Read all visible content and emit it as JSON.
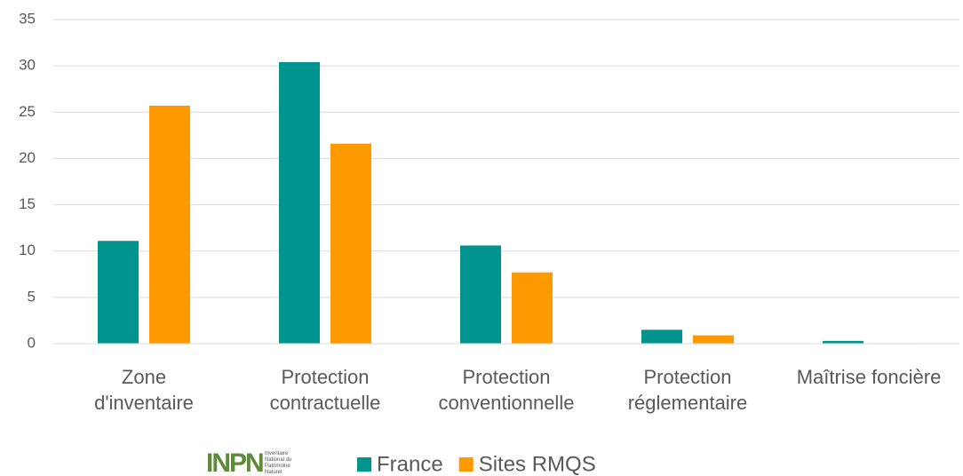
{
  "chart_data": {
    "type": "bar",
    "categories": [
      "Zone\nd'inventaire",
      "Protection\ncontractuelle",
      "Protection\nconventionnelle",
      "Protection\nréglementaire",
      "Maîtrise foncière"
    ],
    "series": [
      {
        "name": "France",
        "color": "#00948f",
        "values": [
          11.1,
          30.4,
          10.6,
          1.5,
          0.3
        ]
      },
      {
        "name": "Sites RMQS",
        "color": "#ff9900",
        "values": [
          25.7,
          21.6,
          7.7,
          0.9,
          0.05
        ]
      }
    ],
    "ylim": [
      0,
      35
    ],
    "yticks": [
      0,
      5,
      10,
      15,
      20,
      25,
      30,
      35
    ],
    "grid": true,
    "logo": {
      "text": "INPN",
      "caption": "Inventaire National du Patrimoine Naturel"
    }
  }
}
